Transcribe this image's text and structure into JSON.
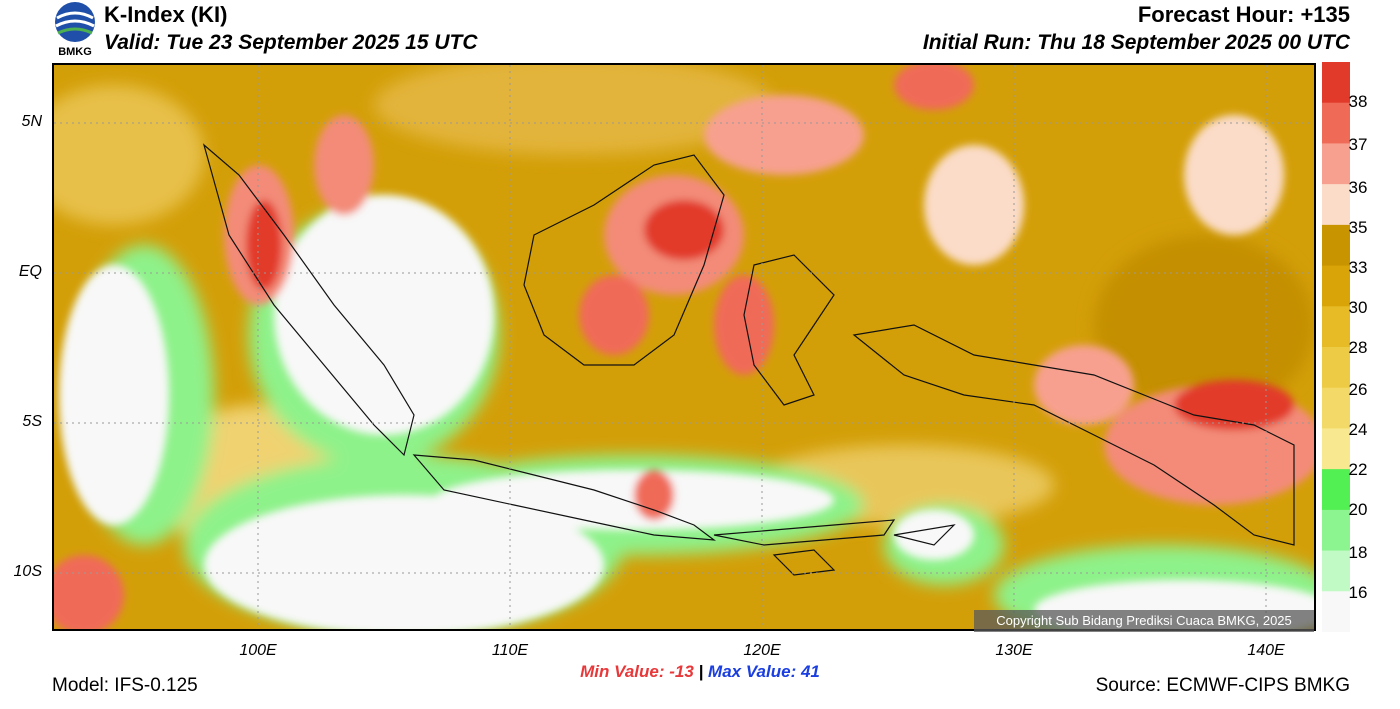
{
  "header": {
    "title": "K-Index (KI)",
    "valid": "Valid: Tue 23 September 2025 15 UTC",
    "forecast_hour": "Forecast Hour: +135",
    "initial_run": "Initial Run: Thu 18 September 2025 00 UTC",
    "logo_text": "BMKG"
  },
  "map": {
    "lat_labels": [
      "5N",
      "EQ",
      "5S",
      "10S"
    ],
    "lon_labels": [
      "100E",
      "110E",
      "120E",
      "130E",
      "140E"
    ],
    "copyright": "Copyright Sub Bidang Prediksi Cuaca BMKG, 2025"
  },
  "colorbar": {
    "labels": [
      "38",
      "37",
      "36",
      "35",
      "33",
      "30",
      "28",
      "26",
      "24",
      "22",
      "20",
      "18",
      "16"
    ],
    "colors": [
      "#e23a2a",
      "#f06a58",
      "#f7a08f",
      "#fbdcc8",
      "#c89400",
      "#d9a408",
      "#e7bb25",
      "#eecb45",
      "#f3d968",
      "#f8e890",
      "#52f052",
      "#8cf590",
      "#c2fac5",
      "#f8f8f8"
    ]
  },
  "stats": {
    "min": "Min Value: -13",
    "separator": "|",
    "max": "Max Value:  41"
  },
  "footer": {
    "model": "Model: IFS-0.125",
    "source": "Source: ECMWF-CIPS BMKG"
  }
}
